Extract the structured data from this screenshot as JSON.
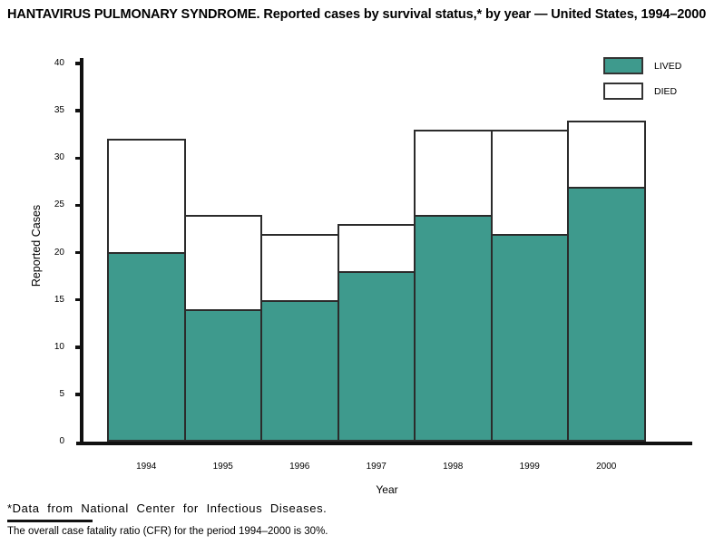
{
  "header": {
    "title": "HANTAVIRUS PULMONARY SYNDROME. Reported cases by survival status,* by year — United States, 1994–2000"
  },
  "chart_data": {
    "type": "bar",
    "stacked": true,
    "categories": [
      "1994",
      "1995",
      "1996",
      "1997",
      "1998",
      "1999",
      "2000"
    ],
    "series": [
      {
        "name": "LIVED",
        "color": "#3e9a8d",
        "values": [
          20,
          14,
          15,
          18,
          24,
          22,
          27
        ]
      },
      {
        "name": "DIED",
        "color": "#ffffff",
        "values": [
          12,
          10,
          7,
          5,
          9,
          11,
          7
        ]
      }
    ],
    "totals": [
      32,
      24,
      22,
      23,
      33,
      33,
      34
    ],
    "xlabel": "Year",
    "ylabel": "Reported Cases",
    "ylim": [
      0,
      40
    ],
    "yticks": [
      0,
      5,
      10,
      15,
      20,
      25,
      30,
      35,
      40
    ],
    "grid": false,
    "legend_position": "top-right"
  },
  "legend": {
    "items": [
      {
        "label": "LIVED",
        "color": "#3e9a8d"
      },
      {
        "label": "DIED",
        "color": "#ffffff"
      }
    ]
  },
  "footnotes": {
    "note1": "*Data from National Center for Infectious Diseases.",
    "note2": "The overall case fatality ratio (CFR) for the period 1994–2000 is 30%."
  },
  "colors": {
    "lived": "#3e9a8d",
    "died": "#ffffff",
    "bar_border": "#2b2b2b",
    "axis": "#111111"
  }
}
